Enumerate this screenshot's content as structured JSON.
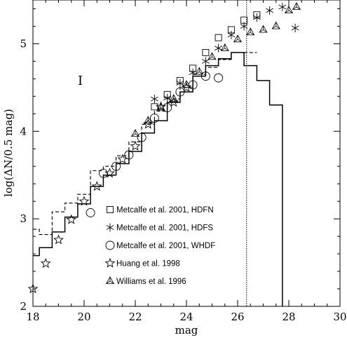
{
  "chart_data": {
    "type": "scatter",
    "xlabel": "mag",
    "ylabel": "log(ΔN/0.5 mag)",
    "xlim": [
      18,
      30
    ],
    "ylim": [
      2,
      5.5
    ],
    "x_ticks": [
      18,
      20,
      22,
      24,
      26,
      28,
      30
    ],
    "y_ticks": [
      2,
      3,
      4,
      5
    ],
    "x_tick_labels": [
      "18",
      "20",
      "22",
      "24",
      "26",
      "28",
      "30"
    ],
    "y_tick_labels": [
      "2",
      "3",
      "4",
      "5"
    ],
    "annotation": "I",
    "vline_x": 26.35,
    "grid": false,
    "legend_position": "center",
    "series": [
      {
        "name": "Metcalfe et al. 2001, HDFN",
        "marker": "square",
        "x": [
          22.75,
          23.25,
          23.75,
          24.25,
          24.75,
          25.25,
          25.75,
          26.25,
          26.75
        ],
        "y": [
          4.28,
          4.42,
          4.58,
          4.72,
          4.9,
          5.07,
          5.16,
          5.27,
          5.33
        ]
      },
      {
        "name": "Metcalfe et al. 2001, HDFS",
        "marker": "star6",
        "x": [
          22.75,
          23.25,
          23.75,
          24.25,
          24.75,
          25.25,
          25.75,
          26.25,
          26.75,
          27.25,
          27.75,
          28.25
        ],
        "y": [
          4.37,
          4.38,
          4.55,
          4.67,
          4.8,
          4.95,
          5.1,
          5.2,
          5.3,
          5.38,
          5.42,
          5.18
        ]
      },
      {
        "name": "Metcalfe et al. 2001, WHDF",
        "marker": "circle",
        "x": [
          20.25,
          20.75,
          21.25,
          21.75,
          22.25,
          22.75,
          23.25,
          23.75,
          24.25,
          24.75,
          25.25
        ],
        "y": [
          3.07,
          3.52,
          3.6,
          3.73,
          3.93,
          4.15,
          4.27,
          4.45,
          4.53,
          4.63,
          4.61
        ]
      },
      {
        "name": "Huang et al. 1998",
        "marker": "star5",
        "x": [
          18.0,
          18.5,
          19.0,
          19.5,
          20.0,
          20.5,
          21.0,
          21.5,
          22.0,
          22.5,
          23.0,
          23.5,
          24.0
        ],
        "y": [
          2.2,
          2.49,
          2.76,
          2.99,
          3.2,
          3.37,
          3.52,
          3.68,
          3.83,
          4.08,
          4.28,
          4.33,
          4.5
        ]
      },
      {
        "name": "Williams et al. 1996",
        "marker": "triangle",
        "x": [
          22.0,
          22.5,
          23.0,
          23.5,
          24.0,
          24.5,
          25.0,
          25.5,
          26.0,
          26.5,
          27.0,
          27.5,
          28.0,
          28.3
        ],
        "y": [
          3.97,
          4.12,
          4.27,
          4.37,
          4.53,
          4.68,
          4.85,
          4.95,
          5.05,
          5.13,
          5.16,
          5.2,
          5.38,
          5.42
        ]
      }
    ],
    "model_solid": {
      "x_edges": [
        18.0,
        18.25,
        18.75,
        19.25,
        19.75,
        20.25,
        20.75,
        21.25,
        21.75,
        22.25,
        22.75,
        23.25,
        23.75,
        24.25,
        24.75,
        25.25,
        25.75,
        26.25,
        26.75,
        27.25,
        27.75
      ],
      "y": [
        2.58,
        2.67,
        2.85,
        3.02,
        3.17,
        3.37,
        3.5,
        3.63,
        3.77,
        3.98,
        4.12,
        4.33,
        4.45,
        4.63,
        4.75,
        4.83,
        4.9,
        4.75,
        4.58,
        4.3,
        2.75
      ],
      "y_end": 2.0,
      "x_end": 27.75
    },
    "model_dashed": {
      "x_edges": [
        18.0,
        18.25,
        18.75,
        19.25,
        19.75,
        20.25,
        20.75,
        21.25,
        21.75,
        22.25,
        22.75,
        23.25,
        23.75,
        24.25,
        24.75,
        25.25,
        25.75,
        26.25
      ],
      "y": [
        2.88,
        2.82,
        3.08,
        3.18,
        3.28,
        3.55,
        3.6,
        3.72,
        3.88,
        4.08,
        4.23,
        4.37,
        4.5,
        4.65,
        4.73,
        4.82,
        4.9,
        4.9
      ]
    }
  }
}
